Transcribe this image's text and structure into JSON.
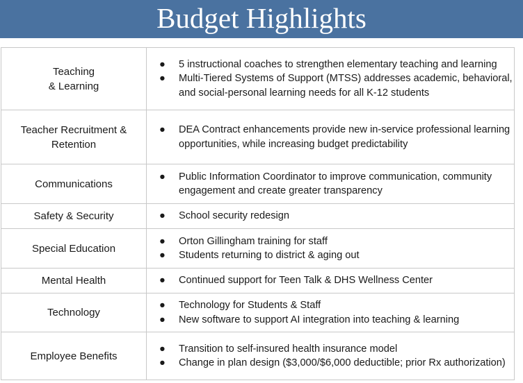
{
  "header": {
    "title": "Budget Highlights",
    "color": "#4a72a0"
  },
  "rows": [
    {
      "category": "Teaching\n& Learning",
      "items": [
        "5 instructional coaches to strengthen elementary teaching and learning",
        "Multi-Tiered Systems of Support (MTSS) addresses academic, behavioral, and social-personal learning needs for all K-12 students"
      ]
    },
    {
      "category": "Teacher Recruitment & Retention",
      "items": [
        "DEA Contract enhancements provide new in-service professional learning opportunities, while increasing budget predictability"
      ]
    },
    {
      "category": "Communications",
      "items": [
        "Public Information Coordinator to improve communication, community engagement and create greater transparency"
      ]
    },
    {
      "category": "Safety & Security",
      "items": [
        "School security redesign"
      ]
    },
    {
      "category": "Special Education",
      "items": [
        "Orton Gillingham training for staff",
        "Students returning to district & aging out"
      ]
    },
    {
      "category": "Mental Health",
      "items": [
        "Continued support for Teen Talk & DHS Wellness Center"
      ]
    },
    {
      "category": "Technology",
      "items": [
        "Technology for Students & Staff",
        "New software to support AI integration into teaching & learning"
      ]
    },
    {
      "category": "Employee Benefits",
      "items": [
        "Transition to self-insured health insurance model",
        "Change in plan design ($3,000/$6,000 deductible; prior Rx authorization)"
      ]
    }
  ],
  "bullet": "●"
}
